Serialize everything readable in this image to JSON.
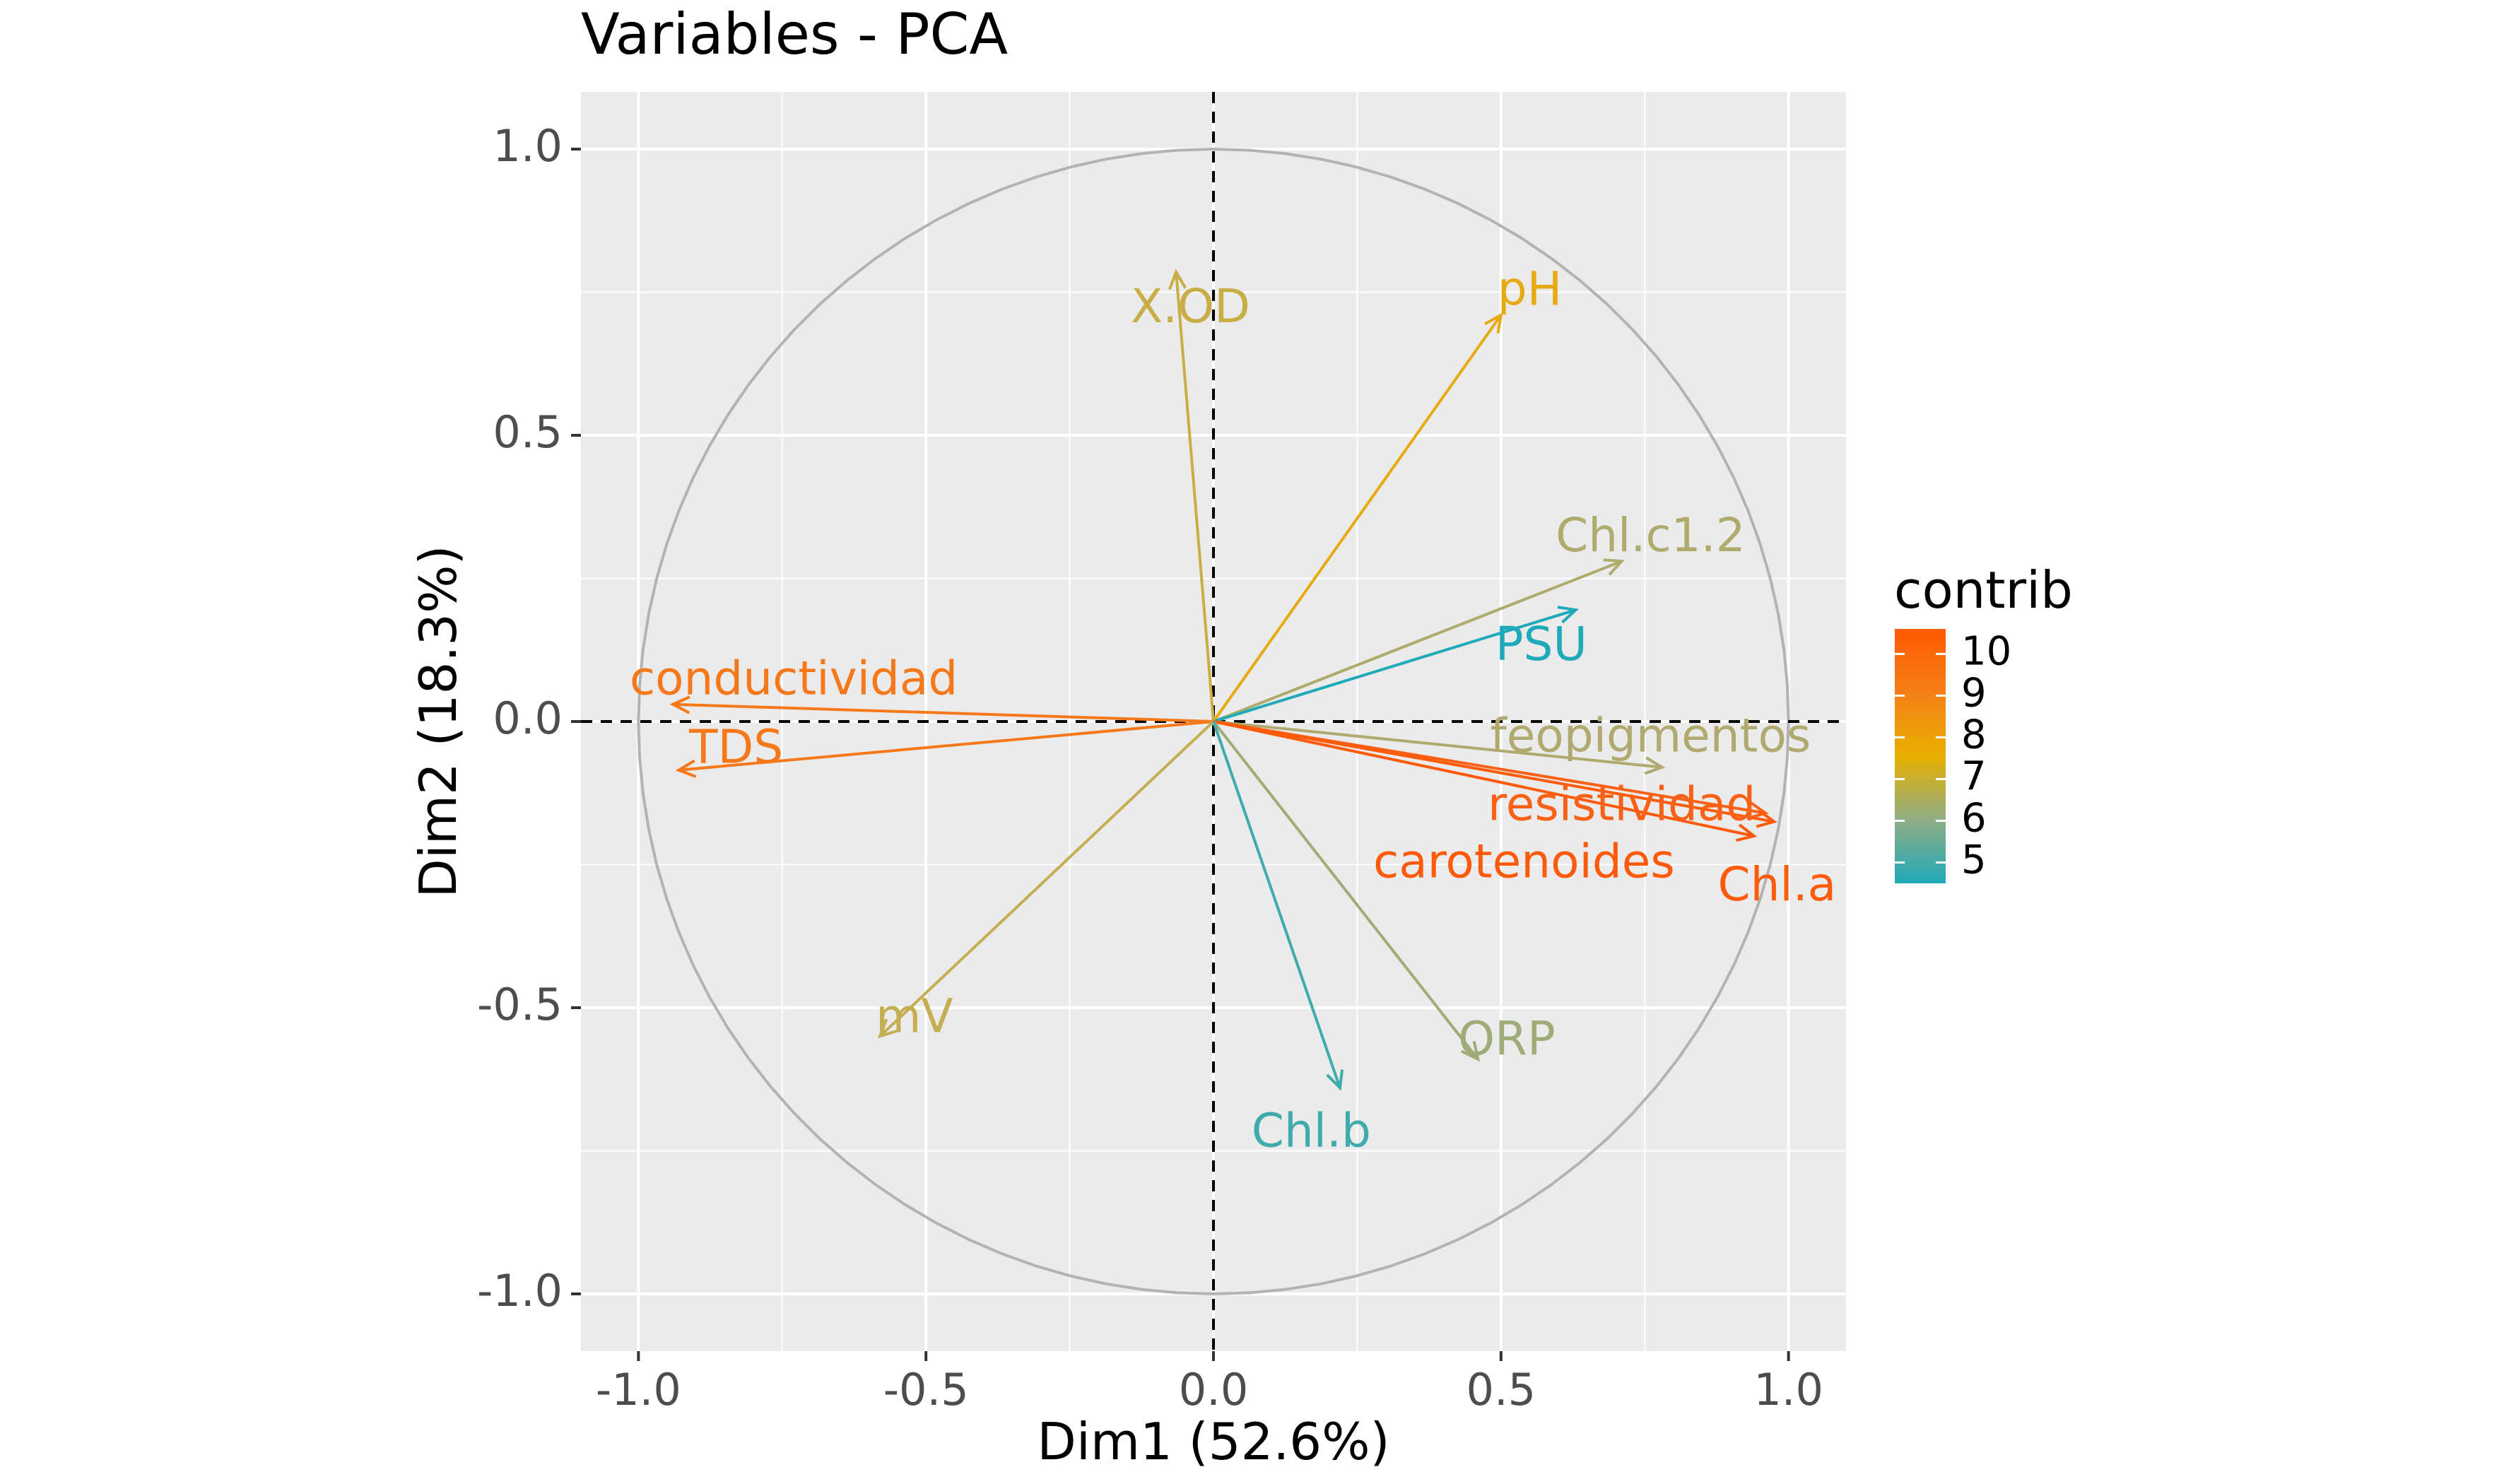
{
  "chart_data": {
    "type": "scatter",
    "subtype": "pca-variable-correlation-circle",
    "title": "Variables - PCA",
    "xlabel": "Dim1 (52.6%)",
    "ylabel": "Dim2 (18.3%)",
    "xlim": [
      -1.1,
      1.1
    ],
    "ylim": [
      -1.1,
      1.1
    ],
    "x_ticks": [
      -1.0,
      -0.5,
      0.0,
      0.5,
      1.0
    ],
    "x_tick_labels": [
      "-1.0",
      "-0.5",
      "0.0",
      "0.5",
      "1.0"
    ],
    "y_ticks": [
      -1.0,
      -0.5,
      0.0,
      0.5,
      1.0
    ],
    "y_tick_labels": [
      "-1.0",
      "-0.5",
      "0.0",
      "0.5",
      "1.0"
    ],
    "grid": true,
    "unit_circle": true,
    "reference_lines": {
      "x": 0,
      "y": 0,
      "style": "dashed"
    },
    "variables": [
      {
        "name": "X.OD",
        "x": -0.065,
        "y": 0.785,
        "contrib": 7.2,
        "color": "#c9ad46"
      },
      {
        "name": "pH",
        "x": 0.5,
        "y": 0.71,
        "contrib": 8.2,
        "color": "#e8aa12"
      },
      {
        "name": "Chl.c1.2",
        "x": 0.71,
        "y": 0.28,
        "contrib": 6.4,
        "color": "#aeab6c"
      },
      {
        "name": "PSU",
        "x": 0.63,
        "y": 0.195,
        "contrib": 4.8,
        "color": "#1eaab8"
      },
      {
        "name": "conductividad",
        "x": -0.94,
        "y": 0.03,
        "contrib": 9.6,
        "color": "#f5791a"
      },
      {
        "name": "TDS",
        "x": -0.93,
        "y": -0.085,
        "contrib": 9.6,
        "color": "#f5791a"
      },
      {
        "name": "feopigmentos",
        "x": 0.78,
        "y": -0.08,
        "contrib": 6.6,
        "color": "#b0aa70"
      },
      {
        "name": "resistividad",
        "x": 0.96,
        "y": -0.16,
        "contrib": 10.0,
        "color": "#f96117"
      },
      {
        "name": "carotenoides",
        "x": 0.94,
        "y": -0.2,
        "contrib": 10.3,
        "color": "#fd5a0c"
      },
      {
        "name": "Chl.a",
        "x": 0.975,
        "y": -0.175,
        "contrib": 10.5,
        "color": "#fe5c0a"
      },
      {
        "name": "mV",
        "x": -0.58,
        "y": -0.55,
        "contrib": 7.0,
        "color": "#c5ae52"
      },
      {
        "name": "ORP",
        "x": 0.46,
        "y": -0.59,
        "contrib": 6.2,
        "color": "#9fac78"
      },
      {
        "name": "Chl.b",
        "x": 0.22,
        "y": -0.64,
        "contrib": 5.4,
        "color": "#3fabad"
      }
    ],
    "legend": {
      "title": "contrib",
      "position": "right",
      "ticks": [
        10,
        9,
        8,
        7,
        6,
        5
      ],
      "tick_labels": [
        "10",
        "9",
        "8",
        "7",
        "6",
        "5"
      ],
      "range": [
        4.5,
        10.6
      ],
      "gradient_colors": [
        "#1eaab8",
        "#8fad85",
        "#e8b000",
        "#f57f18",
        "#ff5a00"
      ]
    },
    "panel_background": "#ebebeb",
    "grid_color": "#ffffff",
    "circle_color": "#b3b3b3"
  }
}
